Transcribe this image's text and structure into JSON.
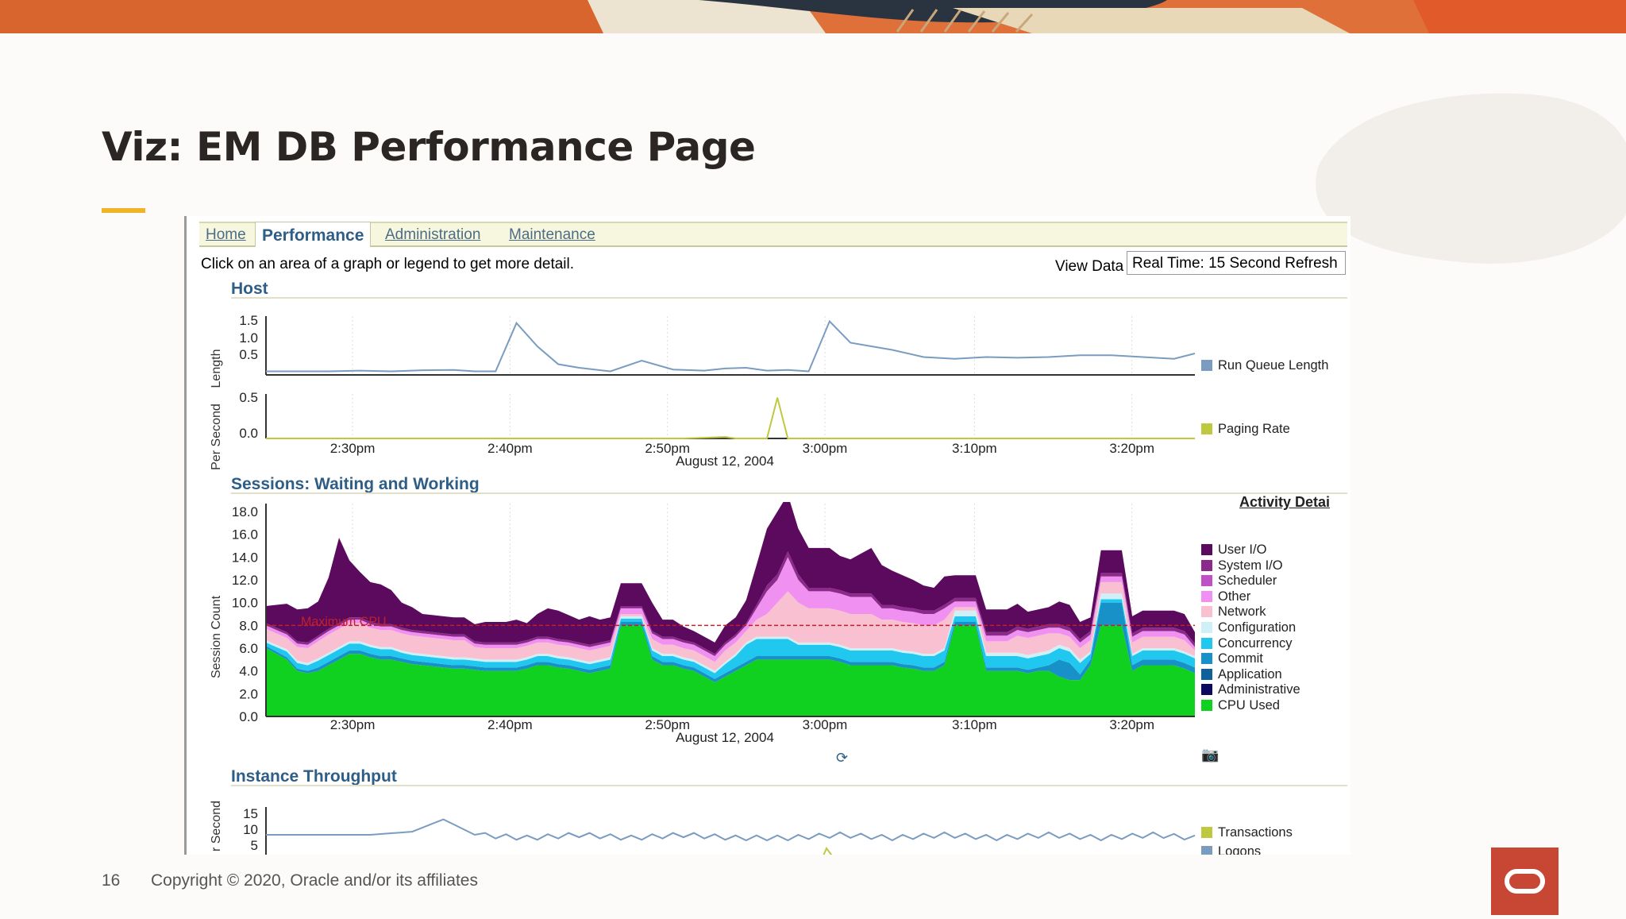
{
  "slide": {
    "title": "Viz: EM DB Performance Page",
    "page_number": "16",
    "copyright": "Copyright © 2020, Oracle and/or its affiliates"
  },
  "tabs": [
    {
      "label": "Home",
      "active": false
    },
    {
      "label": "Performance",
      "active": true
    },
    {
      "label": "Administration",
      "active": false
    },
    {
      "label": "Maintenance",
      "active": false
    }
  ],
  "hint_text": "Click on an area of a graph or legend to get more detail.",
  "view_data_label": "View Data",
  "refresh_value": "Real Time: 15 Second Refresh",
  "host": {
    "header": "Host",
    "run_queue_ylabel": "Length",
    "run_queue_ticks": [
      "1.5",
      "1.0",
      "0.5"
    ],
    "paging_ylabel": "Per Second",
    "paging_ticks": [
      "0.5",
      "0.0"
    ],
    "x_ticks": [
      "2:30pm",
      "2:40pm",
      "2:50pm",
      "3:00pm",
      "3:10pm",
      "3:20pm"
    ],
    "date": "August 12, 2004",
    "legend_run_queue": "Run Queue Length",
    "legend_paging": "Paging Rate"
  },
  "sessions": {
    "header": "Sessions: Waiting and Working",
    "activity_link": "Activity Detai",
    "ylabel": "Session Count",
    "y_ticks": [
      "18.0",
      "16.0",
      "14.0",
      "12.0",
      "10.0",
      "8.0",
      "6.0",
      "4.0",
      "2.0",
      "0.0"
    ],
    "x_ticks": [
      "2:30pm",
      "2:40pm",
      "2:50pm",
      "3:00pm",
      "3:10pm",
      "3:20pm"
    ],
    "date": "August 12, 2004",
    "max_cpu_label": "Maximum CPU",
    "legend": [
      {
        "label": "User I/O",
        "color": "#5b0a5e"
      },
      {
        "label": "System I/O",
        "color": "#8c2a8c"
      },
      {
        "label": "Scheduler",
        "color": "#c050c8"
      },
      {
        "label": "Other",
        "color": "#f090f0"
      },
      {
        "label": "Network",
        "color": "#f8c0d0"
      },
      {
        "label": "Configuration",
        "color": "#d0f0f8"
      },
      {
        "label": "Concurrency",
        "color": "#20c8f0"
      },
      {
        "label": "Commit",
        "color": "#1890c8"
      },
      {
        "label": "Application",
        "color": "#10609a"
      },
      {
        "label": "Administrative",
        "color": "#0a0a60"
      },
      {
        "label": "CPU Used",
        "color": "#10d020"
      }
    ]
  },
  "throughput": {
    "header": "Instance Throughput",
    "ylabel": "r Second",
    "y_ticks": [
      "15",
      "10",
      "5"
    ],
    "legend_transactions": "Transactions",
    "legend_logons": "Logons"
  },
  "colors": {
    "run_queue": "#7a9cc0",
    "paging": "#c0c840",
    "oracle_red": "#c74634",
    "accent": "#f0b429"
  },
  "chart_data": [
    {
      "type": "line",
      "title": "",
      "ylabel": "Length",
      "ylim": [
        0,
        1.6
      ],
      "x": [
        0,
        3,
        6,
        9,
        12,
        15,
        18,
        20,
        22,
        24,
        26,
        28,
        30,
        33,
        36,
        39,
        42,
        44,
        46,
        48,
        50,
        52,
        54,
        56,
        58,
        60,
        63,
        66,
        69,
        72,
        75,
        78,
        81,
        84,
        87,
        89
      ],
      "series": [
        {
          "name": "Run Queue Length",
          "values": [
            0.1,
            0.1,
            0.1,
            0.12,
            0.1,
            0.13,
            0.14,
            0.1,
            0.1,
            1.45,
            0.8,
            0.3,
            0.2,
            0.1,
            0.4,
            0.15,
            0.12,
            0.18,
            0.2,
            0.12,
            0.14,
            0.1,
            1.5,
            0.9,
            0.8,
            0.7,
            0.5,
            0.45,
            0.5,
            0.48,
            0.5,
            0.55,
            0.55,
            0.5,
            0.45,
            0.6
          ]
        }
      ],
      "x_ticks": [
        "2:30pm",
        "2:40pm",
        "2:50pm",
        "3:00pm",
        "3:10pm",
        "3:20pm"
      ]
    },
    {
      "type": "line",
      "title": "",
      "ylabel": "Per Second",
      "ylim": [
        0,
        0.6
      ],
      "x": [
        0,
        10,
        20,
        30,
        40,
        44,
        45,
        46,
        47,
        48,
        49,
        50,
        52,
        60,
        70,
        80,
        89
      ],
      "series": [
        {
          "name": "Paging Rate",
          "values": [
            0,
            0,
            0,
            0,
            0,
            0.02,
            0,
            0,
            0,
            0,
            0.55,
            0,
            0,
            0,
            0,
            0,
            0
          ]
        }
      ],
      "x_ticks": [
        "2:30pm",
        "2:40pm",
        "2:50pm",
        "3:00pm",
        "3:10pm",
        "3:20pm"
      ]
    },
    {
      "type": "area",
      "title": "",
      "ylabel": "Session Count",
      "ylim": [
        0,
        18
      ],
      "max_cpu": 8.0,
      "x_ticks": [
        "2:30pm",
        "2:40pm",
        "2:50pm",
        "3:00pm",
        "3:10pm",
        "3:20pm"
      ],
      "categories": [
        0,
        1,
        2,
        3,
        4,
        5,
        6,
        7,
        8,
        9,
        10,
        11,
        12,
        13,
        14,
        15,
        16,
        17,
        18,
        19,
        20,
        21,
        22,
        23,
        24,
        25,
        26,
        27,
        28,
        29,
        30,
        31,
        32,
        33,
        34,
        35,
        36,
        37,
        38,
        39,
        40,
        41,
        42,
        43,
        44,
        45,
        46,
        47,
        48,
        49,
        50,
        51,
        52,
        53,
        54,
        55,
        56,
        57,
        58,
        59,
        60,
        61,
        62,
        63,
        64,
        65,
        66,
        67,
        68,
        69,
        70,
        71,
        72,
        73,
        74,
        75,
        76,
        77,
        78,
        79,
        80,
        81,
        82,
        83,
        84,
        85,
        86,
        87,
        88,
        89
      ],
      "series": [
        {
          "name": "CPU Used",
          "values": [
            6,
            5.5,
            5,
            4,
            3.8,
            4,
            4.5,
            5,
            5.5,
            5.5,
            5.2,
            5,
            5,
            4.8,
            4.6,
            4.5,
            4.4,
            4.3,
            4.2,
            4.2,
            4.1,
            4,
            4,
            4,
            4,
            4.2,
            4.5,
            4.5,
            4.3,
            4.2,
            4,
            3.8,
            4,
            4.2,
            8,
            8,
            8,
            5,
            4.5,
            4.5,
            4.2,
            4,
            3.5,
            3,
            3.5,
            4,
            4.5,
            5,
            5,
            5,
            5,
            5,
            5,
            5,
            5,
            4.8,
            4.5,
            4.5,
            4.5,
            4.5,
            4.5,
            4.3,
            4.2,
            4,
            4,
            4.5,
            8,
            8,
            8,
            4,
            4,
            4,
            4,
            3.8,
            4,
            4,
            3.5,
            3.2,
            3.2,
            4.5,
            8,
            8,
            8,
            4,
            4.5,
            4.5,
            4.5,
            4.5,
            4.2,
            3.8
          ]
        },
        {
          "name": "Commit",
          "values": [
            0.2,
            0.2,
            0.2,
            0.2,
            0.2,
            0.3,
            0.3,
            0.3,
            0.3,
            0.3,
            0.3,
            0.3,
            0.3,
            0.3,
            0.3,
            0.3,
            0.3,
            0.3,
            0.3,
            0.3,
            0.3,
            0.3,
            0.3,
            0.3,
            0.3,
            0.3,
            0.3,
            0.3,
            0.3,
            0.3,
            0.3,
            0.3,
            0.3,
            0.3,
            0.3,
            0.3,
            0.3,
            0.3,
            0.3,
            0.3,
            0.3,
            0.3,
            0.3,
            0.3,
            0.3,
            0.3,
            0.3,
            0.3,
            0.3,
            0.3,
            0.3,
            0.3,
            0.3,
            0.3,
            0.3,
            0.3,
            0.3,
            0.3,
            0.3,
            0.3,
            0.3,
            0.3,
            0.3,
            0.3,
            0.3,
            0.3,
            0.3,
            0.3,
            0.3,
            0.3,
            0.3,
            0.3,
            0.3,
            0.3,
            0.3,
            0.5,
            1.5,
            1.5,
            0.5,
            0.5,
            2,
            2,
            2,
            0.5,
            0.5,
            0.5,
            0.5,
            0.5,
            0.5,
            0.5
          ]
        },
        {
          "name": "Concurrency",
          "values": [
            0.3,
            0.4,
            0.5,
            0.5,
            0.5,
            0.6,
            0.6,
            0.6,
            0.6,
            0.6,
            0.6,
            0.6,
            0.6,
            0.5,
            0.5,
            0.5,
            0.5,
            0.5,
            0.5,
            0.5,
            0.5,
            0.5,
            0.5,
            0.5,
            0.5,
            0.5,
            0.5,
            0.5,
            0.5,
            0.5,
            0.5,
            0.5,
            0.5,
            0.5,
            0.3,
            0.3,
            0.3,
            0.5,
            0.5,
            0.5,
            0.5,
            0.5,
            0.5,
            0.5,
            0.8,
            1,
            1.5,
            1.5,
            1.5,
            1.5,
            1.5,
            1,
            1,
            1,
            1,
            1,
            1,
            1,
            1,
            1,
            1,
            1,
            1,
            1,
            1,
            1,
            0.5,
            0.5,
            0.5,
            1,
            1,
            1,
            1,
            1,
            1,
            1,
            1,
            1,
            1,
            0.5,
            0.3,
            0.3,
            0.3,
            0.8,
            0.8,
            0.8,
            0.8,
            0.8,
            0.8,
            0.8
          ]
        },
        {
          "name": "Configuration",
          "values": [
            0.2,
            0.2,
            0.2,
            0.2,
            0.2,
            0.2,
            0.2,
            0.2,
            0.2,
            0.2,
            0.2,
            0.2,
            0.2,
            0.2,
            0.2,
            0.2,
            0.2,
            0.2,
            0.2,
            0.2,
            0.2,
            0.2,
            0.2,
            0.2,
            0.2,
            0.2,
            0.2,
            0.2,
            0.2,
            0.2,
            0.2,
            0.2,
            0.2,
            0.2,
            0.2,
            0.2,
            0.2,
            0.2,
            0.2,
            0.2,
            0.2,
            0.2,
            0.2,
            0.2,
            0.2,
            0.2,
            0.2,
            0.2,
            0.2,
            0.2,
            0.2,
            0.2,
            0.2,
            0.2,
            0.2,
            0.2,
            0.2,
            0.2,
            0.2,
            0.2,
            0.2,
            0.2,
            0.2,
            0.2,
            0.2,
            0.2,
            0.5,
            0.5,
            0.5,
            0.3,
            0.3,
            0.3,
            0.3,
            0.3,
            0.3,
            0.3,
            0.3,
            0.3,
            0.3,
            0.2,
            0.5,
            0.5,
            0.5,
            0.2,
            0.2,
            0.2,
            0.2,
            0.2,
            0.2,
            0.2
          ]
        },
        {
          "name": "Network",
          "values": [
            1,
            1,
            1,
            1.2,
            1.3,
            1.5,
            1.6,
            1.6,
            1.6,
            1.6,
            1.5,
            1.5,
            1.5,
            1.5,
            1.5,
            1.5,
            1.5,
            1.5,
            1.5,
            1.5,
            1,
            1,
            1,
            1,
            1,
            1,
            1,
            1,
            1,
            1,
            1,
            1,
            1,
            1,
            0.2,
            0.2,
            0.2,
            0.8,
            0.8,
            0.8,
            0.8,
            0.8,
            0.8,
            0.8,
            1,
            1,
            1,
            1.5,
            2,
            3,
            4,
            3.5,
            3,
            3,
            3,
            3,
            3,
            3,
            3,
            2.5,
            2.5,
            2.5,
            2.5,
            2.5,
            2.5,
            2.5,
            0.3,
            0.3,
            0.3,
            1,
            1,
            1,
            1.5,
            1.5,
            1.5,
            1.5,
            1,
            1,
            1,
            1,
            1,
            1,
            1,
            1,
            1,
            1,
            1,
            1,
            1,
            0.5
          ]
        },
        {
          "name": "Other",
          "values": [
            0.3,
            0.3,
            0.3,
            0.3,
            0.3,
            0.3,
            0.3,
            0.3,
            0.3,
            0.3,
            0.3,
            0.3,
            0.3,
            0.3,
            0.3,
            0.3,
            0.3,
            0.3,
            0.3,
            0.3,
            0.3,
            0.3,
            0.3,
            0.3,
            0.3,
            0.3,
            0.3,
            0.3,
            0.3,
            0.3,
            0.3,
            0.3,
            0.3,
            0.3,
            0.5,
            0.5,
            0.5,
            0.5,
            0.5,
            0.5,
            0.5,
            0.5,
            0.5,
            0.5,
            0.5,
            0.5,
            0.5,
            1,
            2,
            2,
            3,
            2,
            1.5,
            1.5,
            1.5,
            1.5,
            1.5,
            1.5,
            1.5,
            1,
            1,
            1,
            1,
            1,
            1,
            1,
            0.5,
            0.5,
            0.5,
            0.5,
            0.5,
            0.5,
            0.5,
            0.5,
            0.5,
            0.5,
            0.5,
            0.5,
            0.5,
            0.5,
            0.5,
            0.5,
            0.5,
            0.5,
            0.5,
            0.5,
            0.5,
            0.5,
            0.5,
            0.3
          ]
        },
        {
          "name": "System I/O",
          "values": [
            0.2,
            0.2,
            0.2,
            0.2,
            0.2,
            0.2,
            0.2,
            0.2,
            0.2,
            0.2,
            0.2,
            0.2,
            0.2,
            0.2,
            0.2,
            0.2,
            0.2,
            0.2,
            0.2,
            0.2,
            0.2,
            0.2,
            0.2,
            0.2,
            0.2,
            0.2,
            0.2,
            0.2,
            0.2,
            0.2,
            0.2,
            0.2,
            0.2,
            0.2,
            0.2,
            0.2,
            0.2,
            0.2,
            0.2,
            0.2,
            0.2,
            0.2,
            0.2,
            0.2,
            0.2,
            0.2,
            0.2,
            0.3,
            0.5,
            0.5,
            0.5,
            0.5,
            0.3,
            0.3,
            0.3,
            0.3,
            0.3,
            0.3,
            0.3,
            0.3,
            0.3,
            0.3,
            0.3,
            0.3,
            0.3,
            0.3,
            0.3,
            0.3,
            0.3,
            0.3,
            0.3,
            0.3,
            0.3,
            0.3,
            0.3,
            0.3,
            0.3,
            0.3,
            0.3,
            0.3,
            0.3,
            0.3,
            0.3,
            0.3,
            0.3,
            0.3,
            0.3,
            0.3,
            0.3,
            0.3
          ]
        },
        {
          "name": "User I/O",
          "values": [
            1.5,
            2,
            2.5,
            2.8,
            3,
            3,
            4.5,
            7.5,
            5,
            4,
            3.5,
            3.5,
            3,
            2.2,
            2,
            1.5,
            1.5,
            1.5,
            1.5,
            1.5,
            1.5,
            1.8,
            1.8,
            1.8,
            2,
            1.5,
            2,
            2.5,
            2.5,
            2.2,
            2,
            2.5,
            2,
            2,
            2,
            2,
            2,
            2.5,
            1.5,
            1.5,
            1.2,
            1,
            1,
            1,
            1.5,
            1.5,
            2,
            3.5,
            5,
            5.5,
            5,
            4,
            3.5,
            3.5,
            3.5,
            3,
            3,
            3.5,
            4,
            3.5,
            3,
            2.8,
            2.5,
            2.2,
            2,
            2.5,
            2,
            2,
            2,
            2,
            2,
            2,
            2,
            1.5,
            1.5,
            1.5,
            2,
            2,
            1.5,
            1.2,
            2,
            2,
            2,
            1.5,
            1.5,
            1.5,
            1.5,
            1.5,
            1.5,
            1
          ]
        }
      ]
    },
    {
      "type": "line",
      "title": "",
      "ylabel": "r Second",
      "ylim": [
        0,
        18
      ],
      "x": [
        0,
        5,
        10,
        14,
        17,
        20,
        25,
        30,
        35,
        40,
        45,
        50,
        55,
        60,
        65,
        70,
        75,
        80,
        85,
        89
      ],
      "series": [
        {
          "name": "Transactions",
          "values": [
            9,
            9,
            9,
            10,
            14,
            9,
            8,
            9,
            8,
            9,
            8,
            8,
            9,
            8,
            9,
            8,
            9,
            8,
            9,
            8
          ]
        }
      ]
    }
  ]
}
